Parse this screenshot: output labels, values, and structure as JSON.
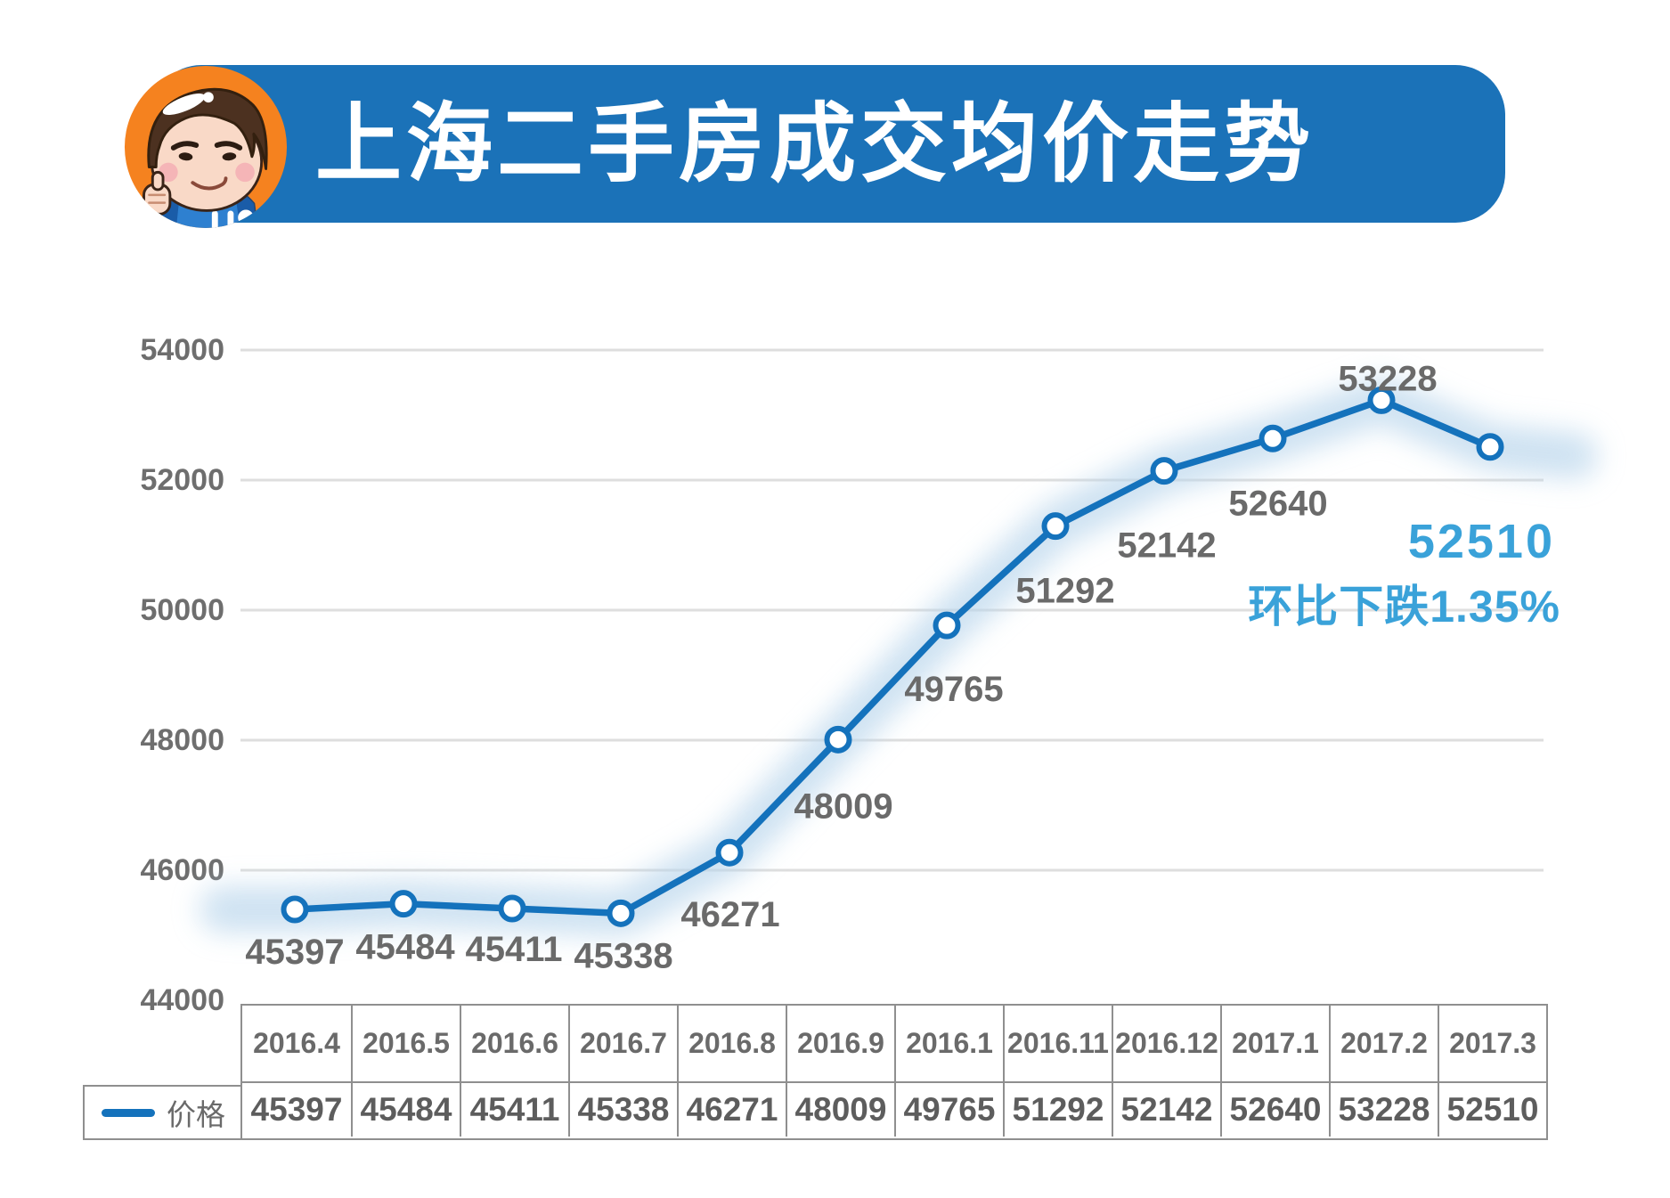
{
  "header": {
    "title": "上海二手房成交均价走势",
    "banner_color": "#1b72b8",
    "avatar_bg_color": "#f5821f"
  },
  "chart_data": {
    "type": "line",
    "title": "上海二手房成交均价走势",
    "categories": [
      "2016.4",
      "2016.5",
      "2016.6",
      "2016.7",
      "2016.8",
      "2016.9",
      "2016.1",
      "2016.11",
      "2016.12",
      "2017.1",
      "2017.2",
      "2017.3"
    ],
    "series": [
      {
        "name": "价格",
        "values": [
          45397,
          45484,
          45411,
          45338,
          46271,
          48009,
          49765,
          51292,
          52142,
          52640,
          53228,
          52510
        ]
      }
    ],
    "ylim": [
      44000,
      54000
    ],
    "yticks": [
      54000,
      52000,
      50000,
      48000,
      46000,
      44000
    ],
    "grid": true,
    "legend_position": "bottom-table",
    "line_color": "#1472bc",
    "glow_color": "#b9d6ec",
    "marker_style": "open-circle",
    "label_color": "#6a6a6a",
    "annotation": {
      "value": "52510",
      "note": "环比下跌1.35%",
      "color": "#3aa2d9"
    }
  }
}
